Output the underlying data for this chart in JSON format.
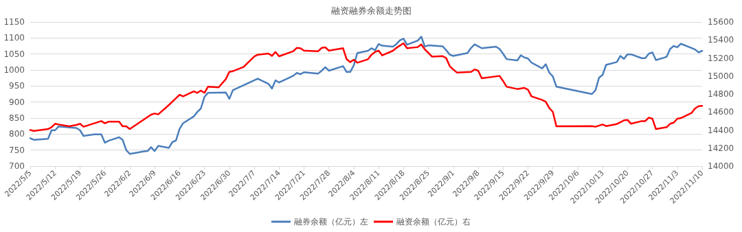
{
  "chart_data": {
    "type": "line",
    "title": "融资融券余额走势图",
    "series": [
      {
        "name": "融券余额（亿元）左",
        "color": "#4a7ebb",
        "axis": "y",
        "x": [
          "2022-05-05",
          "2022-05-06",
          "2022-05-10",
          "2022-05-11",
          "2022-05-12",
          "2022-05-13",
          "2022-05-18",
          "2022-05-19",
          "2022-05-20",
          "2022-05-23",
          "2022-05-25",
          "2022-05-26",
          "2022-05-27",
          "2022-05-30",
          "2022-05-31",
          "2022-06-01",
          "2022-06-02",
          "2022-06-06",
          "2022-06-07",
          "2022-06-08",
          "2022-06-09",
          "2022-06-10",
          "2022-06-13",
          "2022-06-14",
          "2022-06-15",
          "2022-06-16",
          "2022-06-17",
          "2022-06-20",
          "2022-06-21",
          "2022-06-22",
          "2022-06-23",
          "2022-06-24",
          "2022-06-29",
          "2022-06-30",
          "2022-07-01",
          "2022-07-08",
          "2022-07-11",
          "2022-07-12",
          "2022-07-13",
          "2022-07-14",
          "2022-07-18",
          "2022-07-19",
          "2022-07-20",
          "2022-07-21",
          "2022-07-25",
          "2022-07-26",
          "2022-07-27",
          "2022-07-28",
          "2022-08-01",
          "2022-08-02",
          "2022-08-03",
          "2022-08-04",
          "2022-08-05",
          "2022-08-08",
          "2022-08-09",
          "2022-08-10",
          "2022-08-11",
          "2022-08-12",
          "2022-08-15",
          "2022-08-16",
          "2022-08-17",
          "2022-08-18",
          "2022-08-19",
          "2022-08-22",
          "2022-08-23",
          "2022-08-24",
          "2022-08-25",
          "2022-08-29",
          "2022-08-30",
          "2022-08-31",
          "2022-09-01",
          "2022-09-05",
          "2022-09-06",
          "2022-09-07",
          "2022-09-08",
          "2022-09-09",
          "2022-09-13",
          "2022-09-14",
          "2022-09-15",
          "2022-09-16",
          "2022-09-19",
          "2022-09-20",
          "2022-09-21",
          "2022-09-22",
          "2022-09-23",
          "2022-09-26",
          "2022-09-27",
          "2022-09-28",
          "2022-09-29",
          "2022-09-30",
          "2022-10-10",
          "2022-10-11",
          "2022-10-12",
          "2022-10-13",
          "2022-10-14",
          "2022-10-17",
          "2022-10-18",
          "2022-10-19",
          "2022-10-20",
          "2022-10-21",
          "2022-10-24",
          "2022-10-25",
          "2022-10-26",
          "2022-10-27",
          "2022-10-28",
          "2022-10-31",
          "2022-11-01",
          "2022-11-02",
          "2022-11-03",
          "2022-11-04",
          "2022-11-07",
          "2022-11-08",
          "2022-11-09",
          "2022-11-10"
        ],
        "values": [
          787,
          782,
          785,
          812,
          812,
          824,
          819,
          812,
          794,
          799,
          799,
          773,
          779,
          790,
          782,
          750,
          738,
          746,
          747,
          759,
          747,
          763,
          757,
          775,
          780,
          816,
          834,
          855,
          869,
          880,
          916,
          929,
          930,
          910,
          937,
          973,
          957,
          942,
          968,
          961,
          982,
          991,
          987,
          993,
          989,
          998,
          1009,
          998,
          1012,
          994,
          994,
          1014,
          1053,
          1060,
          1068,
          1062,
          1081,
          1076,
          1073,
          1081,
          1093,
          1098,
          1079,
          1092,
          1104,
          1073,
          1077,
          1074,
          1062,
          1048,
          1044,
          1053,
          1069,
          1080,
          1074,
          1068,
          1073,
          1066,
          1051,
          1034,
          1030,
          1046,
          1039,
          1036,
          1023,
          1005,
          1018,
          992,
          980,
          948,
          925,
          937,
          976,
          985,
          1016,
          1025,
          1044,
          1035,
          1049,
          1049,
          1037,
          1037,
          1051,
          1055,
          1031,
          1041,
          1066,
          1075,
          1071,
          1082,
          1069,
          1064,
          1055,
          1060
        ]
      },
      {
        "name": "融资余额（亿元）右",
        "color": "#ff0000",
        "axis": "y2",
        "x": [
          "2022-05-05",
          "2022-05-06",
          "2022-05-10",
          "2022-05-11",
          "2022-05-12",
          "2022-05-13",
          "2022-05-16",
          "2022-05-18",
          "2022-05-19",
          "2022-05-20",
          "2022-05-25",
          "2022-05-26",
          "2022-05-27",
          "2022-05-30",
          "2022-05-31",
          "2022-06-01",
          "2022-06-02",
          "2022-06-08",
          "2022-06-09",
          "2022-06-10",
          "2022-06-13",
          "2022-06-14",
          "2022-06-15",
          "2022-06-16",
          "2022-06-17",
          "2022-06-20",
          "2022-06-21",
          "2022-06-22",
          "2022-06-23",
          "2022-06-24",
          "2022-06-27",
          "2022-06-29",
          "2022-06-30",
          "2022-07-01",
          "2022-07-04",
          "2022-07-07",
          "2022-07-08",
          "2022-07-11",
          "2022-07-12",
          "2022-07-13",
          "2022-07-14",
          "2022-07-18",
          "2022-07-19",
          "2022-07-20",
          "2022-07-21",
          "2022-07-25",
          "2022-07-26",
          "2022-07-27",
          "2022-07-28",
          "2022-08-01",
          "2022-08-02",
          "2022-08-03",
          "2022-08-04",
          "2022-08-05",
          "2022-08-08",
          "2022-08-09",
          "2022-08-10",
          "2022-08-11",
          "2022-08-12",
          "2022-08-15",
          "2022-08-16",
          "2022-08-17",
          "2022-08-18",
          "2022-08-19",
          "2022-08-22",
          "2022-08-23",
          "2022-08-24",
          "2022-08-25",
          "2022-08-26",
          "2022-08-29",
          "2022-08-30",
          "2022-08-31",
          "2022-09-01",
          "2022-09-02",
          "2022-09-06",
          "2022-09-07",
          "2022-09-08",
          "2022-09-09",
          "2022-09-14",
          "2022-09-15",
          "2022-09-16",
          "2022-09-19",
          "2022-09-21",
          "2022-09-22",
          "2022-09-23",
          "2022-09-26",
          "2022-09-27",
          "2022-09-28",
          "2022-09-29",
          "2022-09-30",
          "2022-10-10",
          "2022-10-11",
          "2022-10-13",
          "2022-10-14",
          "2022-10-17",
          "2022-10-18",
          "2022-10-19",
          "2022-10-20",
          "2022-10-21",
          "2022-10-24",
          "2022-10-25",
          "2022-10-26",
          "2022-10-27",
          "2022-10-28",
          "2022-10-31",
          "2022-11-01",
          "2022-11-02",
          "2022-11-03",
          "2022-11-04",
          "2022-11-07",
          "2022-11-08",
          "2022-11-09",
          "2022-11-10"
        ],
        "values": [
          14401,
          14391,
          14411,
          14432,
          14470,
          14462,
          14442,
          14457,
          14470,
          14437,
          14500,
          14475,
          14493,
          14493,
          14442,
          14442,
          14411,
          14571,
          14584,
          14574,
          14678,
          14716,
          14754,
          14792,
          14774,
          14830,
          14813,
          14838,
          14813,
          14881,
          14874,
          14965,
          15046,
          15054,
          15100,
          15216,
          15237,
          15249,
          15224,
          15267,
          15219,
          15275,
          15313,
          15308,
          15282,
          15275,
          15313,
          15318,
          15282,
          15308,
          15186,
          15155,
          15181,
          15148,
          15186,
          15237,
          15267,
          15282,
          15229,
          15280,
          15313,
          15338,
          15364,
          15308,
          15321,
          15351,
          15295,
          15257,
          15216,
          15221,
          15199,
          15110,
          15072,
          15039,
          15046,
          15072,
          15059,
          14975,
          15001,
          14945,
          14881,
          14856,
          14868,
          14848,
          14774,
          14734,
          14716,
          14645,
          14602,
          14442,
          14444,
          14437,
          14462,
          14444,
          14467,
          14487,
          14508,
          14513,
          14470,
          14500,
          14500,
          14538,
          14526,
          14411,
          14432,
          14470,
          14482,
          14526,
          14533,
          14589,
          14640,
          14665,
          14668
        ]
      }
    ],
    "xlim": [
      "2022-05-05",
      "2022-11-10"
    ],
    "xticks": [
      {
        "value": "2022-05-05",
        "label": "2022/5/5"
      },
      {
        "value": "2022-05-12",
        "label": "2022/5/12"
      },
      {
        "value": "2022-05-19",
        "label": "2022/5/19"
      },
      {
        "value": "2022-05-26",
        "label": "2022/5/26"
      },
      {
        "value": "2022-06-02",
        "label": "2022/6/2"
      },
      {
        "value": "2022-06-09",
        "label": "2022/6/9"
      },
      {
        "value": "2022-06-16",
        "label": "2022/6/16"
      },
      {
        "value": "2022-06-23",
        "label": "2022/6/23"
      },
      {
        "value": "2022-06-30",
        "label": "2022/6/30"
      },
      {
        "value": "2022-07-07",
        "label": "2022/7/7"
      },
      {
        "value": "2022-07-14",
        "label": "2022/7/14"
      },
      {
        "value": "2022-07-21",
        "label": "2022/7/21"
      },
      {
        "value": "2022-07-28",
        "label": "2022/7/28"
      },
      {
        "value": "2022-08-04",
        "label": "2022/8/4"
      },
      {
        "value": "2022-08-11",
        "label": "2022/8/11"
      },
      {
        "value": "2022-08-18",
        "label": "2022/8/18"
      },
      {
        "value": "2022-08-25",
        "label": "2022/8/25"
      },
      {
        "value": "2022-09-01",
        "label": "2022/9/1"
      },
      {
        "value": "2022-09-08",
        "label": "2022/9/8"
      },
      {
        "value": "2022-09-15",
        "label": "2022/9/15"
      },
      {
        "value": "2022-09-22",
        "label": "2022/9/22"
      },
      {
        "value": "2022-09-29",
        "label": "2022/9/29"
      },
      {
        "value": "2022-10-06",
        "label": "2022/10/6"
      },
      {
        "value": "2022-10-13",
        "label": "2022/10/13"
      },
      {
        "value": "2022-10-20",
        "label": "2022/10/20"
      },
      {
        "value": "2022-10-27",
        "label": "2022/10/27"
      },
      {
        "value": "2022-11-03",
        "label": "2022/11/3"
      },
      {
        "value": "2022-11-10",
        "label": "2022/11/10"
      }
    ],
    "ylim": [
      700,
      1150
    ],
    "yticks": [
      700,
      750,
      800,
      850,
      900,
      950,
      1000,
      1050,
      1100,
      1150
    ],
    "y2lim": [
      14000,
      15600
    ],
    "y2ticks": [
      14000,
      14200,
      14400,
      14600,
      14800,
      15000,
      15200,
      15400,
      15600
    ],
    "grid": "y",
    "legend": "bottom",
    "marker": "none",
    "line_style": "solid"
  }
}
